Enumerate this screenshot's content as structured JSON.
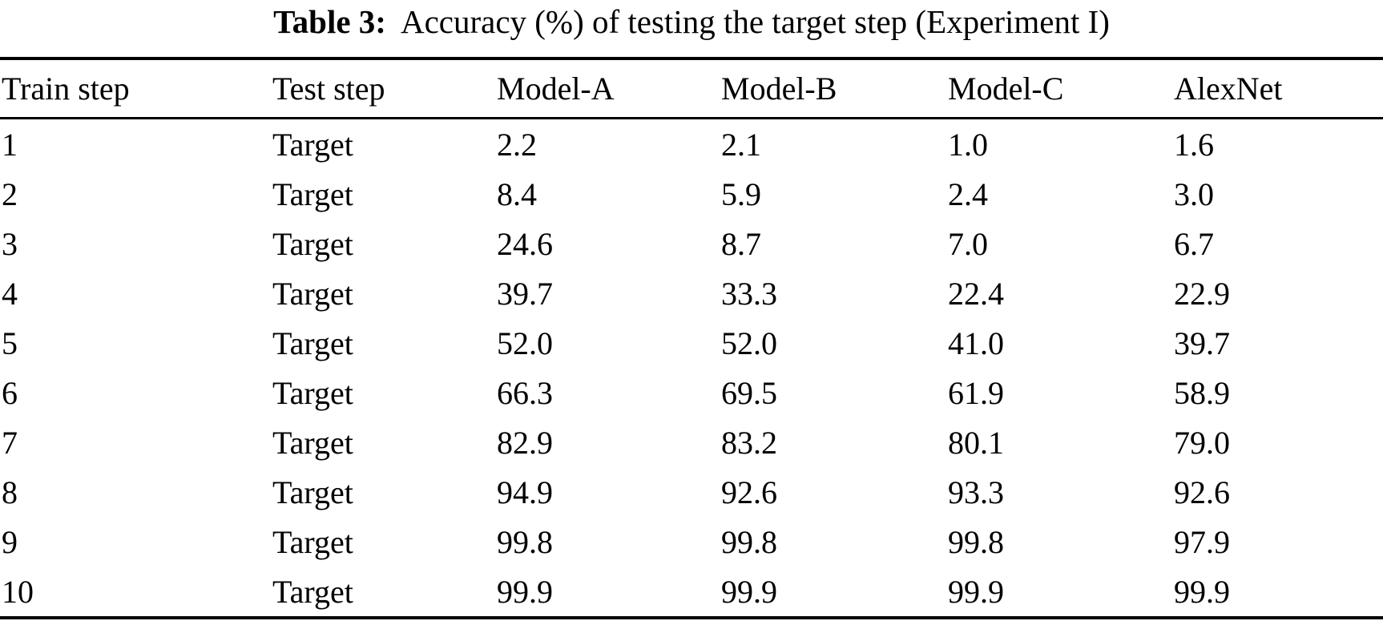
{
  "caption": {
    "label": "Table 3:",
    "text": "Accuracy (%) of testing the target step (Experiment I)"
  },
  "table": {
    "columns": [
      "Train step",
      "Test step",
      "Model-A",
      "Model-B",
      "Model-C",
      "AlexNet"
    ],
    "rows": [
      [
        "1",
        "Target",
        "2.2",
        "2.1",
        "1.0",
        "1.6"
      ],
      [
        "2",
        "Target",
        "8.4",
        "5.9",
        "2.4",
        "3.0"
      ],
      [
        "3",
        "Target",
        "24.6",
        "8.7",
        "7.0",
        "6.7"
      ],
      [
        "4",
        "Target",
        "39.7",
        "33.3",
        "22.4",
        "22.9"
      ],
      [
        "5",
        "Target",
        "52.0",
        "52.0",
        "41.0",
        "39.7"
      ],
      [
        "6",
        "Target",
        "66.3",
        "69.5",
        "61.9",
        "58.9"
      ],
      [
        "7",
        "Target",
        "82.9",
        "83.2",
        "80.1",
        "79.0"
      ],
      [
        "8",
        "Target",
        "94.9",
        "92.6",
        "93.3",
        "92.6"
      ],
      [
        "9",
        "Target",
        "99.8",
        "99.8",
        "99.8",
        "97.9"
      ],
      [
        "10",
        "Target",
        "99.9",
        "99.9",
        "99.9",
        "99.9"
      ]
    ]
  },
  "colors": {
    "text": "#000000",
    "rule": "#000000",
    "background": "#ffffff"
  }
}
